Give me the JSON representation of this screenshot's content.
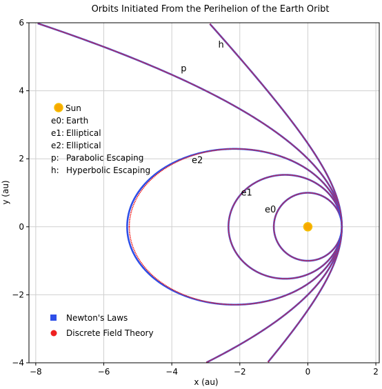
{
  "chart_data": {
    "type": "scatter",
    "title": "Orbits Initiated From the Perihelion of the Earth Oribt",
    "xlabel": "x (au)",
    "ylabel": "y (au)",
    "xlim": [
      -8.2,
      2.1
    ],
    "ylim": [
      -4,
      6
    ],
    "xticks": [
      -8,
      -6,
      -4,
      -2,
      0,
      2
    ],
    "yticks": [
      -4,
      -2,
      0,
      2,
      4,
      6
    ],
    "xtick_labels": [
      "−8",
      "−6",
      "−4",
      "−2",
      "0",
      "2"
    ],
    "ytick_labels": [
      "−4",
      "−2",
      "0",
      "2",
      "4",
      "6"
    ],
    "grid": true,
    "sun": {
      "x": 0,
      "y": 0,
      "color": "#f7a800",
      "edge": "#f5c000"
    },
    "legend_top": [
      {
        "key": "Sun",
        "text": "Sun"
      },
      {
        "key": "e0:",
        "text": "Earth"
      },
      {
        "key": "e1:",
        "text": "Elliptical"
      },
      {
        "key": "e2:",
        "text": "Elliptical"
      },
      {
        "key": "p:",
        "text": "Parabolic Escaping"
      },
      {
        "key": "h:",
        "text": "Hyperbolic Escaping"
      }
    ],
    "series": [
      {
        "name": "Newton's Laws",
        "color": "#2e4fe8",
        "marker": "square"
      },
      {
        "name": "Discrete Field Theory",
        "color": "#ee2020",
        "marker": "circle"
      }
    ],
    "orbits": [
      {
        "label": "e0",
        "kind": "ellipse",
        "r_perihelion": 1.0,
        "eccentricity": 0.0,
        "label_pos": [
          -1.1,
          0.5
        ]
      },
      {
        "label": "e1",
        "kind": "ellipse",
        "r_perihelion": 1.0,
        "eccentricity": 0.4,
        "label_pos": [
          -1.8,
          1.0
        ]
      },
      {
        "label": "e2",
        "kind": "ellipse",
        "r_perihelion": 1.0,
        "eccentricity": 0.68,
        "label_pos": [
          -3.25,
          1.95
        ]
      },
      {
        "label": "p",
        "kind": "parabola",
        "r_perihelion": 1.0,
        "eccentricity": 1.0,
        "label_pos": [
          -3.65,
          4.65
        ]
      },
      {
        "label": "h",
        "kind": "hyperbola",
        "r_perihelion": 1.0,
        "eccentricity": 1.45,
        "label_pos": [
          -2.55,
          5.35
        ]
      }
    ]
  }
}
